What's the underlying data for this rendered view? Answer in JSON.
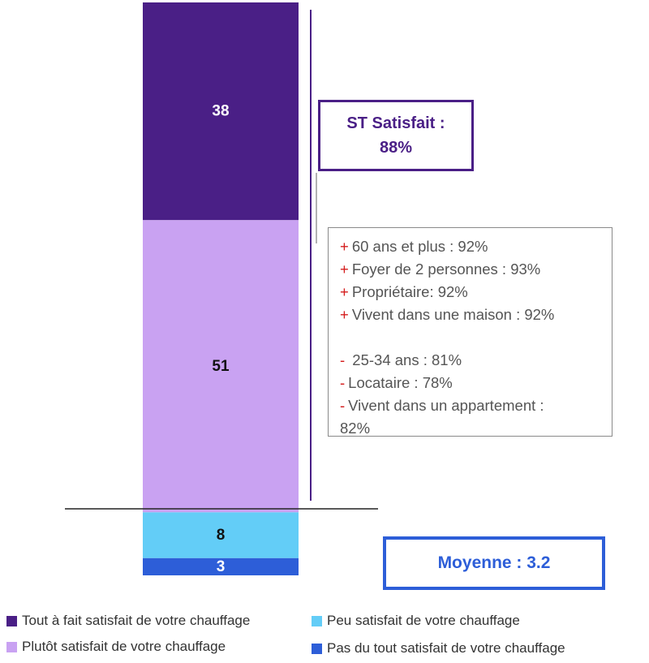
{
  "chart_data": {
    "type": "bar",
    "stacked": true,
    "orientation": "vertical",
    "total": 100,
    "series": [
      {
        "name": "Tout à fait satisfait de votre chauffage",
        "value": 38,
        "label": "38",
        "color": "#4a1f86",
        "label_color": "#ffffff"
      },
      {
        "name": "Plutôt satisfait de votre chauffage",
        "value": 51,
        "label": "51",
        "color": "#c9a2f2",
        "label_color": "#111111"
      },
      {
        "name": "Peu satisfait de votre chauffage",
        "value": 8,
        "label": "8",
        "color": "#63cdf7",
        "label_color": "#111111"
      },
      {
        "name": "Pas du tout satisfait de votre chauffage",
        "value": 3,
        "label": "3",
        "color": "#2d5ed8",
        "label_color": "#ffffff"
      }
    ],
    "legend_position": "bottom"
  },
  "summary": {
    "st_satisfait_line1": "ST Satisfait :",
    "st_satisfait_line2": "88%",
    "moyenne_label": "Moyenne : 3.2"
  },
  "details": {
    "plus_sign": "+",
    "minus_sign": "-",
    "plus_items": [
      "60 ans et plus : 92%",
      "Foyer de 2 personnes : 93%",
      "Propriétaire: 92%",
      "Vivent dans une maison : 92%"
    ],
    "minus_items": [
      " 25-34 ans : 81%",
      "Locataire : 78%",
      "Vivent dans un appartement :",
      "82%"
    ]
  },
  "legend": [
    {
      "label": "Tout à fait satisfait de votre chauffage",
      "color": "#4a1f86"
    },
    {
      "label": "Plutôt satisfait de votre chauffage",
      "color": "#c9a2f2"
    },
    {
      "label": "Peu satisfait de votre chauffage",
      "color": "#63cdf7"
    },
    {
      "label": "Pas du tout satisfait de votre chauffage",
      "color": "#2d5ed8"
    }
  ]
}
